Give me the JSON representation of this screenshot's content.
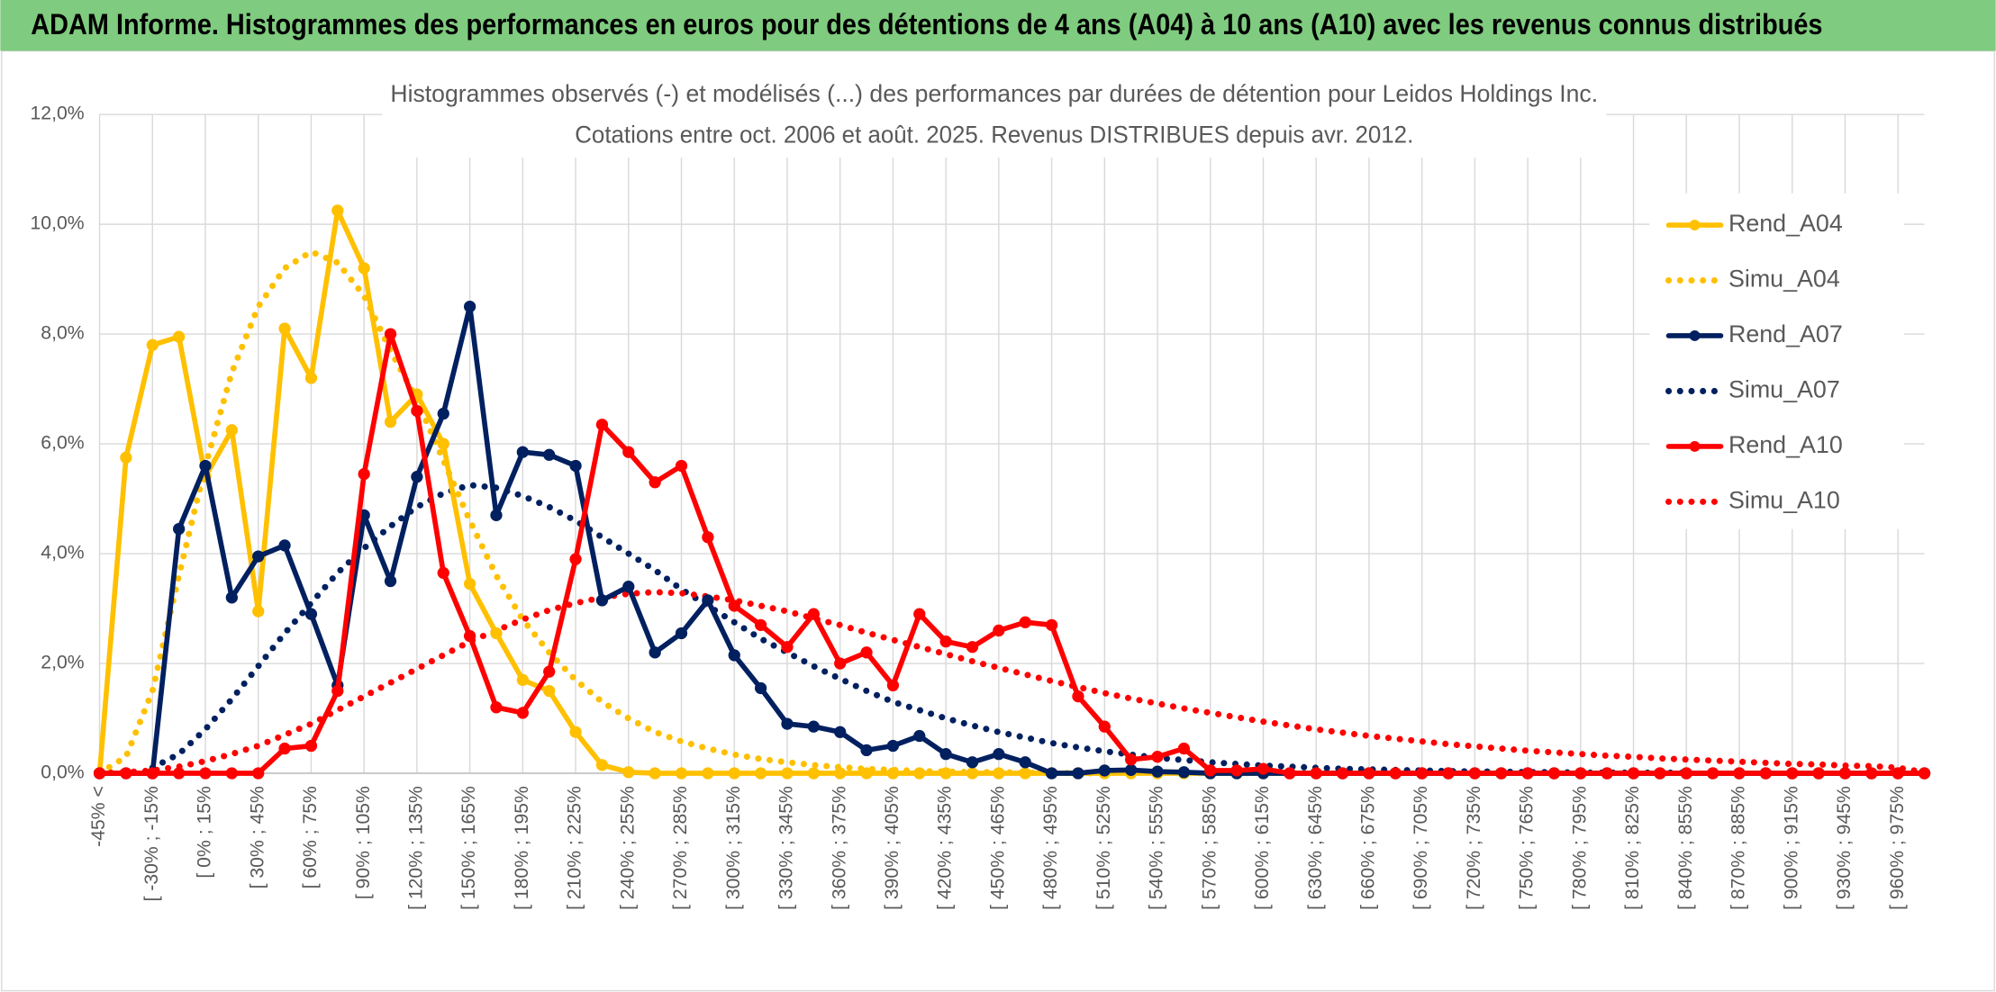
{
  "header": "ADAM Informe. Histogrammes des performances en euros pour des détentions de 4 ans (A04) à 10 ans (A10) avec les revenus connus distribués",
  "chart_data": {
    "type": "line",
    "title": "Histogrammes observés (-) et modélisés (...) des performances par durées de détention pour Leidos Holdings Inc.",
    "subtitle": "Cotations entre oct. 2006 et août. 2025. Revenus DISTRIBUES depuis avr. 2012.",
    "categories": [
      "-45% <",
      null,
      "[ -30% ; -15%",
      null,
      "[ 0% ; 15%",
      null,
      "[ 30% ; 45%",
      null,
      "[ 60% ; 75%",
      null,
      "[ 90% ; 105%",
      null,
      "[ 120% ; 135%",
      null,
      "[ 150% ; 165%",
      null,
      "[ 180% ; 195%",
      null,
      "[ 210% ; 225%",
      null,
      "[ 240% ; 255%",
      null,
      "[ 270% ; 285%",
      null,
      "[ 300% ; 315%",
      null,
      "[ 330% ; 345%",
      null,
      "[ 360% ; 375%",
      null,
      "[ 390% ; 405%",
      null,
      "[ 420% ; 435%",
      null,
      "[ 450% ; 465%",
      null,
      "[ 480% ; 495%",
      null,
      "[ 510% ; 525%",
      null,
      "[ 540% ; 555%",
      null,
      "[ 570% ; 585%",
      null,
      "[ 600% ; 615%",
      null,
      "[ 630% ; 645%",
      null,
      "[ 660% ; 675%",
      null,
      "[ 690% ; 705%",
      null,
      "[ 720% ; 735%",
      null,
      "[ 750% ; 765%",
      null,
      "[ 780% ; 795%",
      null,
      "[ 810% ; 825%",
      null,
      "[ 840% ; 855%",
      null,
      "[ 870% ; 885%",
      null,
      "[ 900% ; 915%",
      null,
      "[ 930% ; 945%",
      null,
      "[ 960% ; 975%",
      null
    ],
    "ylim": [
      0,
      12
    ],
    "yticks": [
      {
        "value": 0,
        "label": "0,0%"
      },
      {
        "value": 2,
        "label": "2,0%"
      },
      {
        "value": 4,
        "label": "4,0%"
      },
      {
        "value": 6,
        "label": "6,0%"
      },
      {
        "value": 8,
        "label": "8,0%"
      },
      {
        "value": 10,
        "label": "10,0%"
      },
      {
        "value": 12,
        "label": "12,0%"
      }
    ],
    "grid": true,
    "legend": "right",
    "series": [
      {
        "name": "Rend_A04",
        "color": "#FFC000",
        "line_style": "solid",
        "markers": true,
        "values": [
          0,
          5.75,
          7.8,
          7.95,
          5.4,
          6.25,
          2.95,
          8.1,
          7.2,
          10.25,
          9.2,
          6.4,
          6.9,
          6.0,
          3.45,
          2.55,
          1.7,
          1.5,
          0.75,
          0.15,
          0.02,
          0,
          0,
          0,
          0,
          0,
          0,
          0,
          0,
          0,
          0,
          0,
          0,
          0,
          0,
          0,
          0,
          0,
          0,
          0,
          0,
          0,
          0,
          0,
          0,
          0,
          0,
          0,
          0,
          0,
          0,
          0,
          0,
          0,
          0,
          0,
          0,
          0,
          0,
          0,
          0,
          0,
          0,
          0,
          0,
          0,
          0,
          0,
          0,
          0
        ]
      },
      {
        "name": "Simu_A04",
        "color": "#FFC000",
        "line_style": "dotted",
        "markers": false,
        "values": [
          0,
          0.3,
          1.5,
          3.6,
          5.6,
          7.3,
          8.5,
          9.2,
          9.5,
          9.3,
          8.7,
          7.7,
          6.8,
          5.7,
          4.6,
          3.6,
          2.8,
          2.2,
          1.7,
          1.3,
          1.0,
          0.75,
          0.58,
          0.45,
          0.34,
          0.26,
          0.2,
          0.15,
          0.11,
          0.08,
          0.06,
          0.04,
          0.03,
          0.02,
          0.02,
          0.01,
          0.01,
          0,
          0,
          null,
          null,
          null,
          null,
          null,
          null,
          null,
          null,
          null,
          null,
          null,
          null,
          null,
          null,
          null,
          null,
          null,
          null,
          null,
          null,
          null,
          null,
          null,
          null,
          null,
          null,
          null,
          null,
          null,
          null,
          null
        ]
      },
      {
        "name": "Rend_A07",
        "color": "#002060",
        "line_style": "solid",
        "markers": true,
        "values": [
          0,
          0,
          0,
          4.45,
          5.6,
          3.2,
          3.95,
          4.15,
          2.9,
          1.6,
          4.7,
          3.5,
          5.4,
          6.55,
          8.5,
          4.7,
          5.85,
          5.8,
          5.6,
          3.15,
          3.4,
          2.2,
          2.55,
          3.15,
          2.15,
          1.55,
          0.9,
          0.85,
          0.75,
          0.42,
          0.5,
          0.68,
          0.35,
          0.2,
          0.35,
          0.2,
          0,
          0,
          0.05,
          0.06,
          0.03,
          0.02,
          0,
          0,
          0,
          0,
          0,
          0,
          0,
          0,
          0,
          0,
          0,
          0,
          0,
          0,
          0,
          0,
          0,
          0,
          0,
          0,
          0,
          0,
          0,
          0,
          0,
          0,
          0,
          0
        ]
      },
      {
        "name": "Simu_A07",
        "color": "#002060",
        "line_style": "dotted",
        "markers": false,
        "values": [
          null,
          null,
          0.1,
          0.35,
          0.8,
          1.35,
          1.95,
          2.55,
          3.1,
          3.65,
          4.1,
          4.5,
          4.85,
          5.1,
          5.25,
          5.2,
          5.05,
          4.85,
          4.6,
          4.3,
          4.0,
          3.7,
          3.35,
          3.05,
          2.75,
          2.45,
          2.2,
          1.95,
          1.72,
          1.5,
          1.3,
          1.15,
          1.0,
          0.87,
          0.75,
          0.65,
          0.55,
          0.47,
          0.4,
          0.34,
          0.28,
          0.24,
          0.2,
          0.17,
          0.14,
          0.12,
          0.1,
          0.08,
          0.07,
          0.06,
          0.05,
          0.04,
          0.03,
          0.03,
          0.02,
          0.02,
          0.01,
          0.01,
          0.01,
          0.01,
          0.01,
          null,
          null,
          null,
          null,
          null,
          null,
          null,
          null,
          null
        ]
      },
      {
        "name": "Rend_A10",
        "color": "#FF0000",
        "line_style": "solid",
        "markers": true,
        "values": [
          0,
          0,
          0,
          0,
          0,
          0,
          0,
          0.45,
          0.5,
          1.5,
          5.45,
          8.0,
          6.6,
          3.65,
          2.5,
          1.2,
          1.1,
          1.85,
          3.9,
          6.35,
          5.85,
          5.3,
          5.6,
          4.3,
          3.05,
          2.7,
          2.3,
          2.9,
          2.0,
          2.2,
          1.6,
          2.9,
          2.4,
          2.3,
          2.6,
          2.75,
          2.7,
          1.4,
          0.85,
          0.25,
          0.3,
          0.45,
          0.05,
          0.05,
          0.08,
          0,
          0,
          0,
          0,
          0,
          0,
          0,
          0,
          0,
          0,
          0,
          0,
          0,
          0,
          0,
          0,
          0,
          0,
          0,
          0,
          0,
          0,
          0,
          0,
          0
        ]
      },
      {
        "name": "Simu_A10",
        "color": "#FF0000",
        "line_style": "dotted",
        "markers": false,
        "values": [
          0,
          0.02,
          0.05,
          0.12,
          0.22,
          0.35,
          0.5,
          0.7,
          0.9,
          1.15,
          1.4,
          1.65,
          1.9,
          2.15,
          2.4,
          2.6,
          2.8,
          2.97,
          3.1,
          3.2,
          3.27,
          3.3,
          3.28,
          3.22,
          3.15,
          3.05,
          2.95,
          2.82,
          2.7,
          2.56,
          2.43,
          2.3,
          2.17,
          2.04,
          1.92,
          1.8,
          1.68,
          1.57,
          1.46,
          1.36,
          1.27,
          1.18,
          1.1,
          1.02,
          0.94,
          0.87,
          0.8,
          0.74,
          0.68,
          0.63,
          0.58,
          0.53,
          0.49,
          0.45,
          0.41,
          0.38,
          0.35,
          0.32,
          0.3,
          0.27,
          0.25,
          0.23,
          0.21,
          0.19,
          0.17,
          0.16,
          0.14,
          0.13,
          0.1,
          0.02
        ]
      }
    ]
  }
}
